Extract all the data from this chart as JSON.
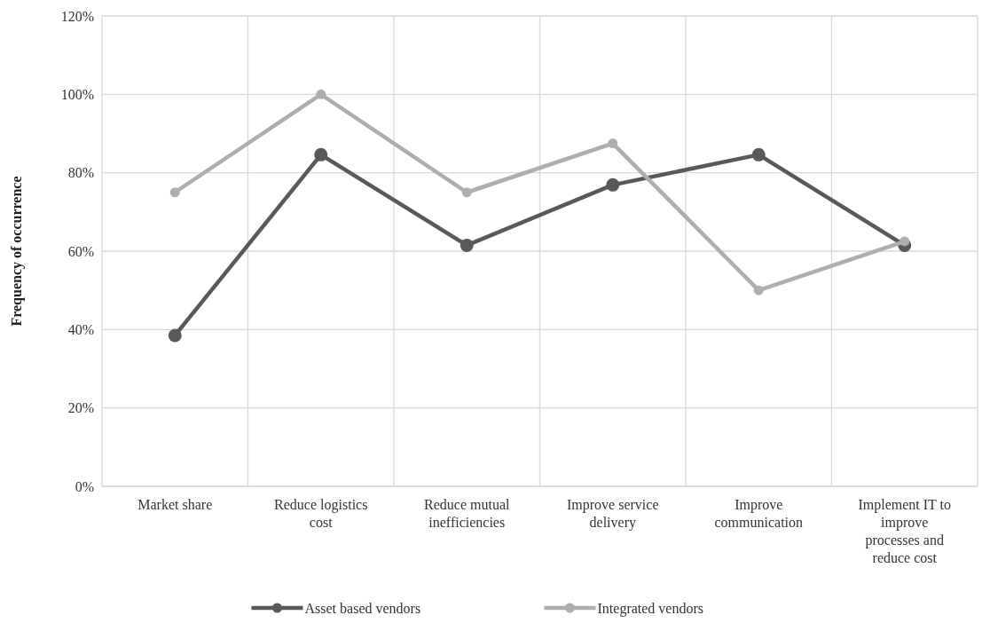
{
  "chart_data": {
    "type": "line",
    "ylabel": "Frequency of occurrence",
    "categories": [
      "Market share",
      "Reduce logistics cost",
      "Reduce mutual inefficiencies",
      "Improve service delivery",
      "Improve communication",
      "Implement IT to improve processes and reduce cost"
    ],
    "series": [
      {
        "name": "Asset based vendors",
        "color": "#595959",
        "values": [
          38.5,
          84.6,
          61.5,
          76.9,
          84.6,
          61.5
        ]
      },
      {
        "name": "Integrated vendors",
        "color": "#aeaeae",
        "values": [
          75,
          100,
          75,
          87.5,
          50,
          62.5
        ]
      }
    ],
    "ylim": [
      0,
      120
    ],
    "yticks": [
      {
        "value": 0,
        "label": "0%"
      },
      {
        "value": 20,
        "label": "20%"
      },
      {
        "value": 40,
        "label": "40%"
      },
      {
        "value": 60,
        "label": "60%"
      },
      {
        "value": 80,
        "label": "80%"
      },
      {
        "value": 100,
        "label": "100%"
      },
      {
        "value": 120,
        "label": "120%"
      }
    ],
    "grid": true,
    "legend": "bottom",
    "marker": "circle",
    "line_style": "solid"
  }
}
